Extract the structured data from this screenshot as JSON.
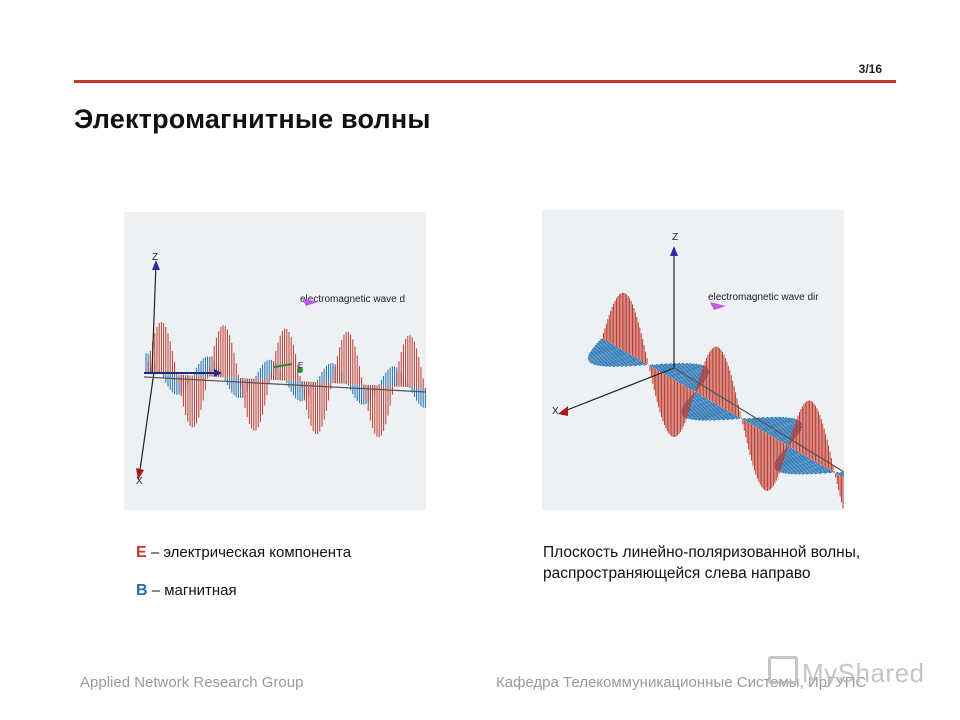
{
  "header": {
    "page_number": "3/16",
    "title": "Электромагнитные волны",
    "accent_color": "#c0392b"
  },
  "figure_left": {
    "z_label": "Z",
    "x_label": "X",
    "e_label": "E",
    "direction_label": "electromagnetic wave d"
  },
  "figure_right": {
    "z_label": "Z",
    "x_label": "X",
    "direction_label": "electromagnetic wave dir"
  },
  "legend": {
    "e_letter": "E",
    "e_text": "– электрическая компонента",
    "b_letter": "B",
    "b_text": "– магнитная",
    "e_color": "#c0392b",
    "b_color": "#1f6fb2"
  },
  "caption": "Плоскость линейно-поляризованной волны, распространяющейся слева направо",
  "footer": {
    "left": "Applied Network Research Group",
    "right": "Кафедра Телекоммуникационные Системы, ИрГУПС"
  },
  "watermark": "MyShared"
}
